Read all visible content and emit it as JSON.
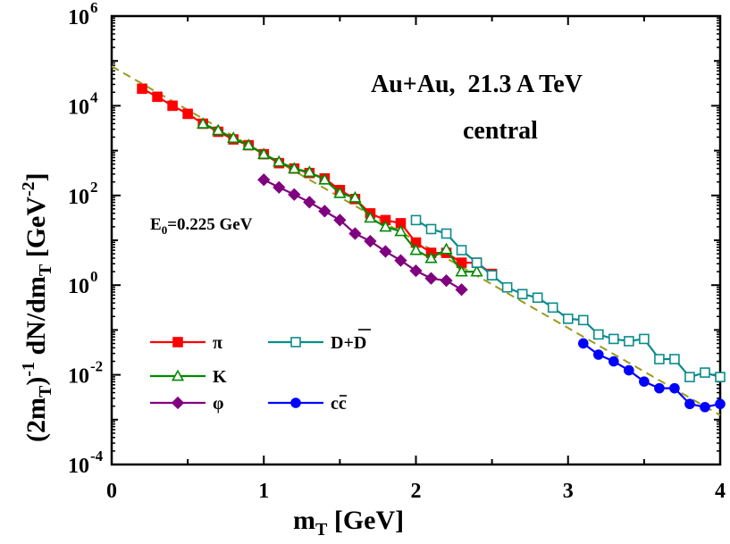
{
  "chart_data": {
    "type": "line",
    "xlabel": "m_T [GeV]",
    "ylabel": "(2m_T)^-1 dN/dm_T [GeV^-2]",
    "xlim": [
      0,
      4
    ],
    "ylim_log10": [
      -4,
      6
    ],
    "yscale": "log",
    "x_ticks": [
      0,
      1,
      2,
      3,
      4
    ],
    "y_ticks": [
      {
        "exp": 6,
        "label": "10",
        "sup": "6"
      },
      {
        "exp": 4,
        "label": "10",
        "sup": "4"
      },
      {
        "exp": 2,
        "label": "10",
        "sup": "2"
      },
      {
        "exp": 0,
        "label": "10",
        "sup": "0"
      },
      {
        "exp": -2,
        "label": "10",
        "sup": "-2"
      },
      {
        "exp": -4,
        "label": "10",
        "sup": "-4"
      }
    ],
    "annotations": {
      "title_line1": "Au+Au,  21.3 A TeV",
      "title_line2": "central",
      "e0_main": "E",
      "e0_sub": "0",
      "e0_rest": "=0.225 GeV"
    },
    "fit": {
      "name": "exponential fit",
      "color": "#9a9a1e",
      "x": [
        0,
        4
      ],
      "log10_y": [
        4.88,
        -2.9
      ]
    },
    "series": [
      {
        "name": "π",
        "legend": "π",
        "color": "#ff0000",
        "marker": "square",
        "filled": true,
        "x": [
          0.2,
          0.3,
          0.4,
          0.5,
          0.6,
          0.7,
          0.8,
          0.9,
          1.0,
          1.1,
          1.2,
          1.3,
          1.4,
          1.5,
          1.6,
          1.7,
          1.8,
          1.9,
          2.0,
          2.1,
          2.2,
          2.3,
          2.4,
          2.5
        ],
        "log10_y": [
          4.38,
          4.2,
          4.0,
          3.82,
          3.6,
          3.42,
          3.25,
          3.12,
          2.92,
          2.72,
          2.6,
          2.5,
          2.38,
          2.12,
          1.92,
          1.6,
          1.45,
          1.38,
          0.95,
          0.72,
          0.72,
          0.5,
          0.5,
          0.25
        ]
      },
      {
        "name": "K",
        "legend": "K",
        "color": "#008a00",
        "marker": "triangle",
        "filled": false,
        "x": [
          0.6,
          0.7,
          0.8,
          0.9,
          1.0,
          1.1,
          1.2,
          1.3,
          1.4,
          1.5,
          1.6,
          1.7,
          1.8,
          1.9,
          2.0,
          2.1,
          2.2,
          2.3,
          2.4
        ],
        "log10_y": [
          3.6,
          3.45,
          3.28,
          3.12,
          2.92,
          2.75,
          2.6,
          2.52,
          2.35,
          2.05,
          1.95,
          1.5,
          1.3,
          1.2,
          0.78,
          0.6,
          0.8,
          0.3,
          0.3
        ]
      },
      {
        "name": "φ",
        "legend": "φ",
        "color": "#800080",
        "marker": "diamond",
        "filled": true,
        "x": [
          1.0,
          1.1,
          1.2,
          1.3,
          1.4,
          1.5,
          1.6,
          1.7,
          1.8,
          1.9,
          2.0,
          2.1,
          2.2,
          2.3
        ],
        "log10_y": [
          2.35,
          2.18,
          2.02,
          1.85,
          1.65,
          1.45,
          1.15,
          0.98,
          0.75,
          0.55,
          0.32,
          0.15,
          0.1,
          -0.1
        ]
      },
      {
        "name": "D+D̄",
        "legend": "D+D",
        "color": "#0a8c8c",
        "marker": "square",
        "filled": false,
        "x": [
          2.0,
          2.1,
          2.2,
          2.3,
          2.4,
          2.5,
          2.6,
          2.7,
          2.8,
          2.9,
          3.0,
          3.1,
          3.2,
          3.3,
          3.4,
          3.5,
          3.6,
          3.7,
          3.8,
          3.9,
          4.0
        ],
        "log10_y": [
          1.45,
          1.25,
          1.15,
          0.78,
          0.5,
          0.22,
          -0.05,
          -0.2,
          -0.28,
          -0.5,
          -0.75,
          -0.78,
          -1.1,
          -1.2,
          -1.25,
          -1.2,
          -1.65,
          -1.65,
          -2.05,
          -1.95,
          -2.05
        ]
      },
      {
        "name": "cc̄",
        "legend": "cc",
        "color": "#0000ff",
        "marker": "circle",
        "filled": true,
        "x": [
          3.1,
          3.2,
          3.3,
          3.4,
          3.5,
          3.6,
          3.7,
          3.8,
          3.9,
          4.0
        ],
        "log10_y": [
          -1.3,
          -1.55,
          -1.7,
          -1.9,
          -2.15,
          -2.3,
          -2.3,
          -2.65,
          -2.72,
          -2.65
        ]
      }
    ]
  }
}
